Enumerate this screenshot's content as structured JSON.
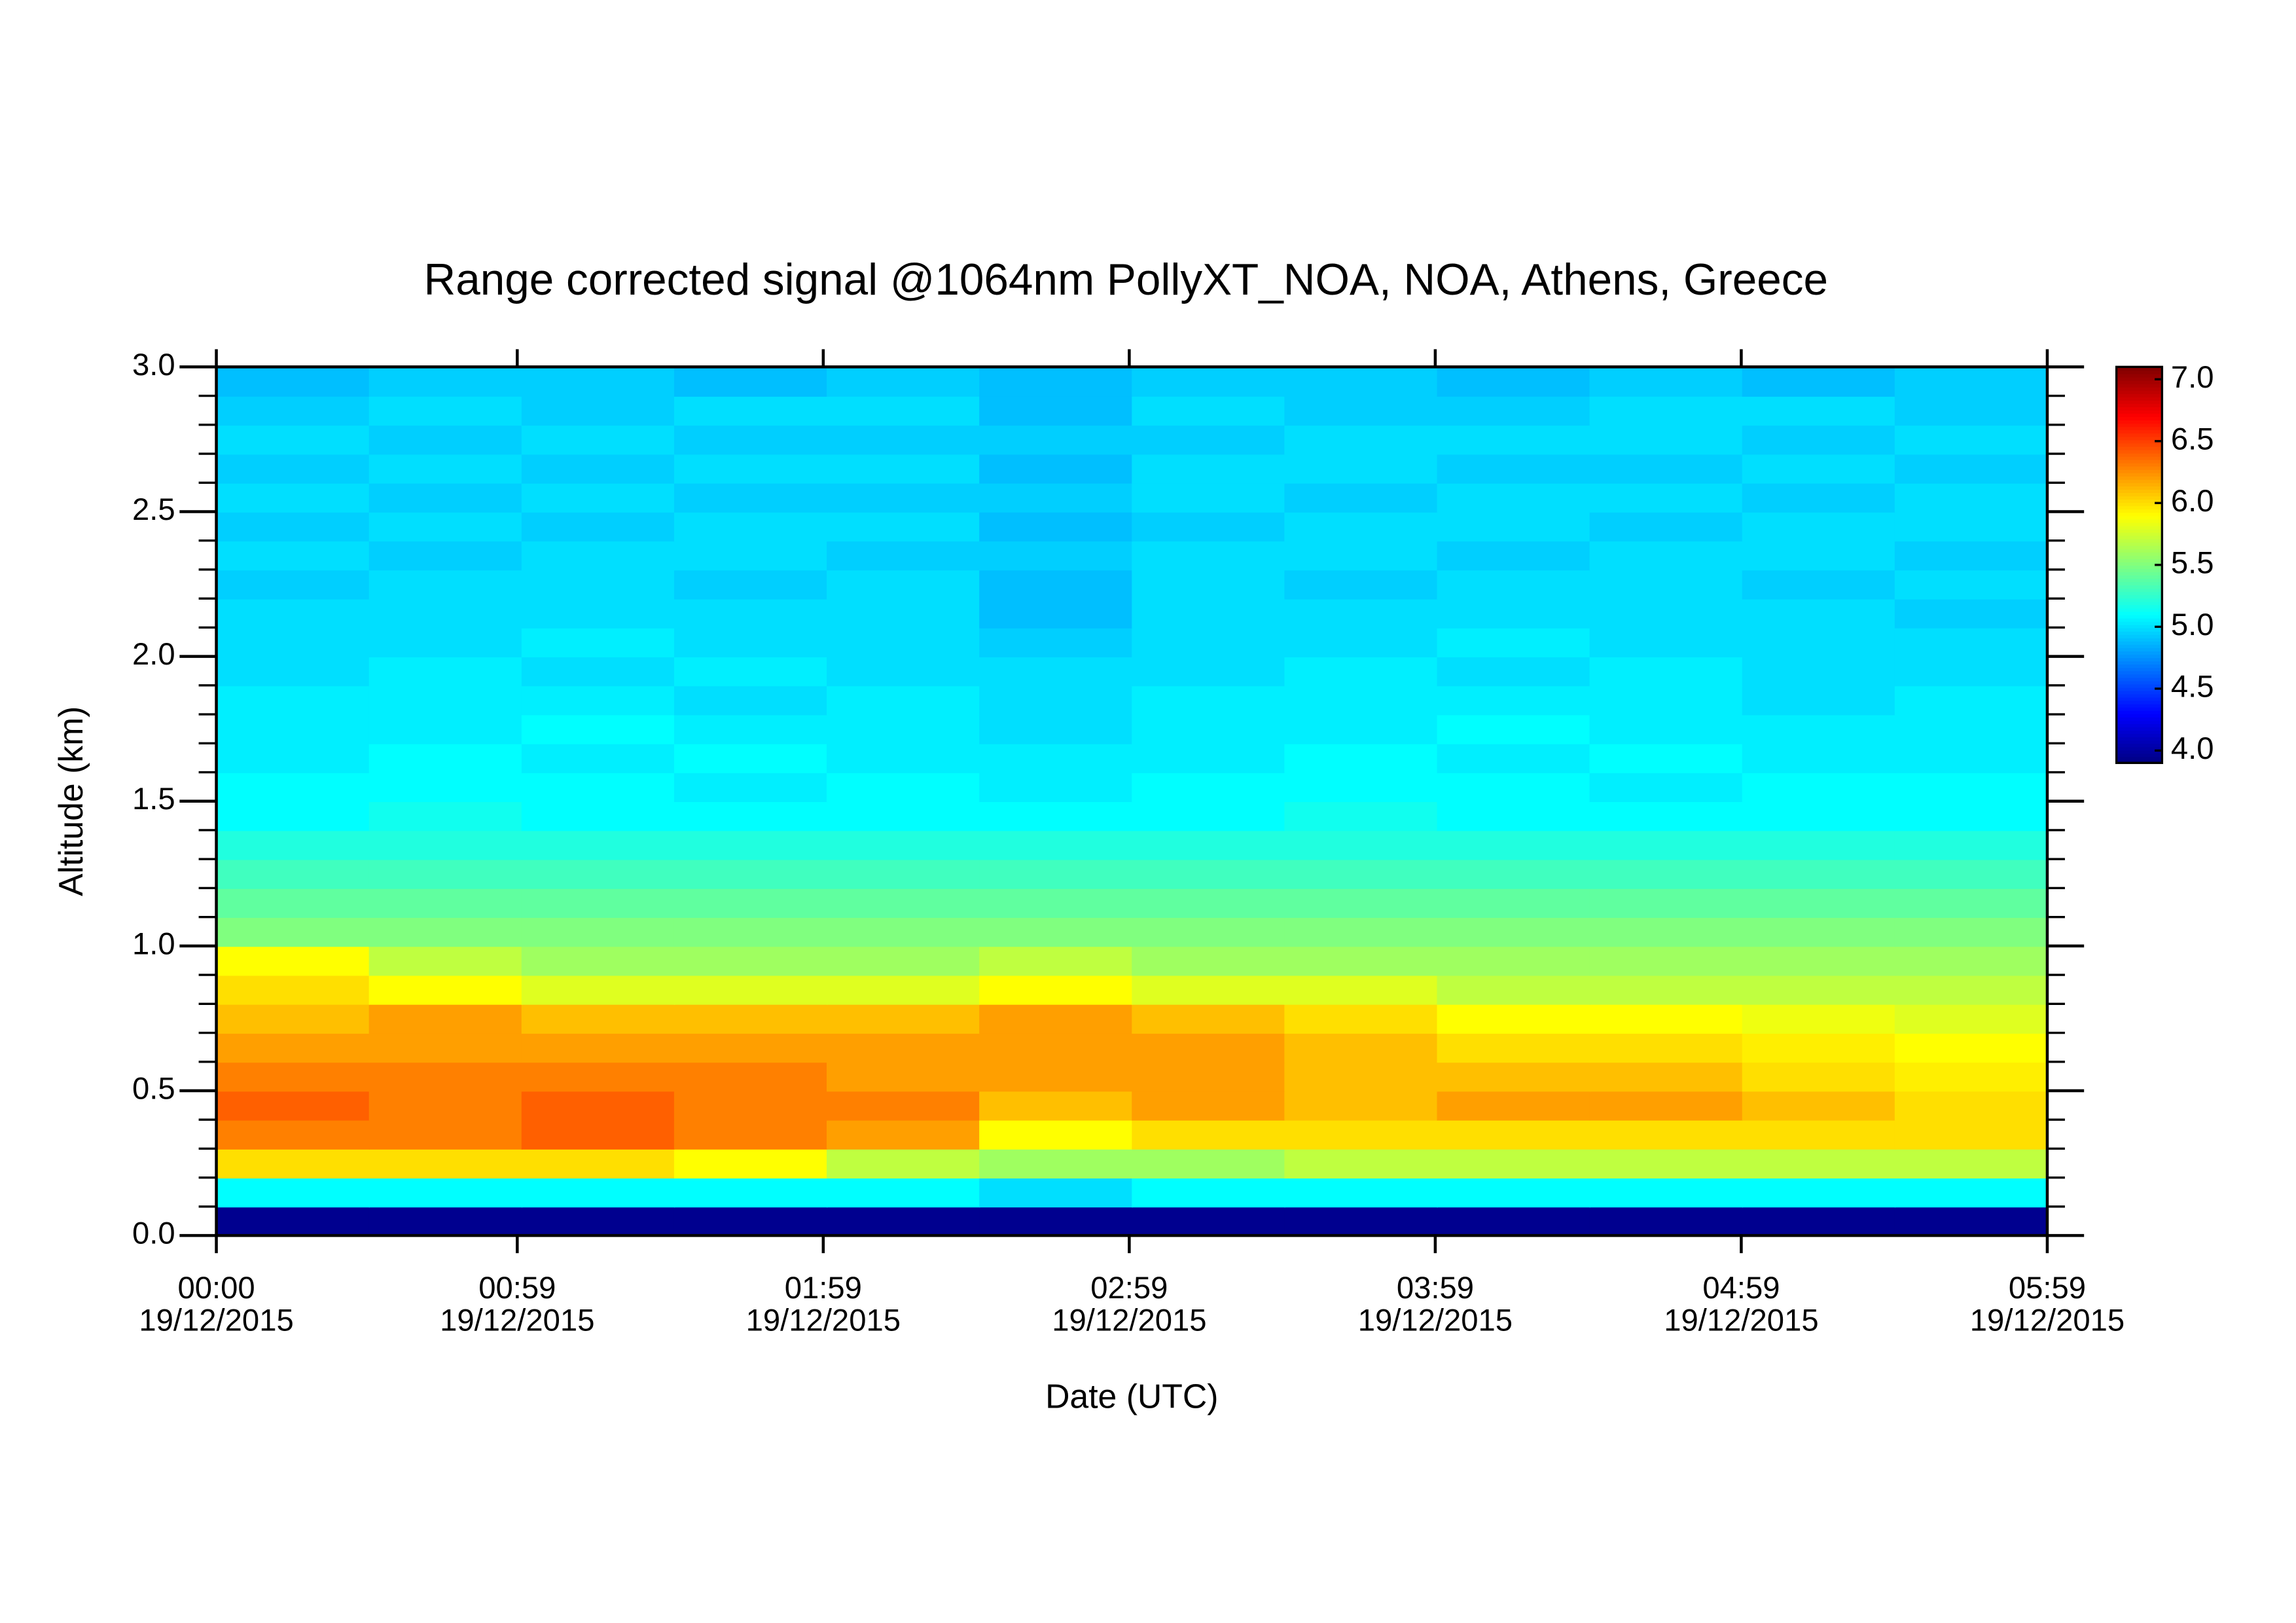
{
  "chart_data": {
    "type": "heatmap",
    "title": "Range corrected signal @1064nm  PollyXT_NOA, NOA, Athens, Greece",
    "xlabel": "Date (UTC)",
    "ylabel": "Altitude (km)",
    "xlim": [
      0,
      359
    ],
    "xticks": [
      {
        "value": 0,
        "label": "00:00"
      },
      {
        "value": 59,
        "label": "00:59"
      },
      {
        "value": 119,
        "label": "01:59"
      },
      {
        "value": 179,
        "label": "02:59"
      },
      {
        "value": 239,
        "label": "03:59"
      },
      {
        "value": 299,
        "label": "04:59"
      },
      {
        "value": 359,
        "label": "05:59"
      }
    ],
    "xtick_dates": [
      "19/12/2015",
      "19/12/2015",
      "19/12/2015",
      "19/12/2015",
      "19/12/2015",
      "19/12/2015",
      "19/12/2015"
    ],
    "ylim": [
      0,
      3
    ],
    "yticks": [
      {
        "value": 0,
        "label": "0.0"
      },
      0.5,
      {
        "value": 1,
        "label": "1.0"
      },
      1.5,
      {
        "value": 2,
        "label": "2.0"
      },
      2.5,
      {
        "value": 3,
        "label": "3.0"
      }
    ],
    "yminorticks": [
      0.1,
      0.2,
      0.3,
      0.4,
      0.6,
      0.7,
      0.8,
      0.9,
      1.1,
      1.2,
      1.3,
      1.4,
      1.6,
      1.7,
      1.8,
      1.9,
      2.1,
      2.2,
      2.3,
      2.4,
      2.6,
      2.7,
      2.8,
      2.9
    ],
    "colormap": "jet",
    "clim": [
      3.9,
      7.1
    ],
    "cticks": [
      {
        "value": 4,
        "label": "4.0"
      },
      4.5,
      {
        "value": 5,
        "label": "5.0"
      },
      5.5,
      {
        "value": 6,
        "label": "6.0"
      },
      6.5,
      {
        "value": 7,
        "label": "7.0"
      }
    ],
    "z": [
      [
        3.95,
        3.95,
        3.95,
        3.95,
        3.95,
        3.95,
        3.95,
        3.95,
        3.95,
        3.95,
        3.95,
        3.95
      ],
      [
        5.1,
        5.1,
        5.1,
        5.1,
        5.1,
        5.0,
        5.1,
        5.1,
        5.1,
        5.1,
        5.1,
        5.1
      ],
      [
        6.0,
        6.0,
        6.0,
        5.9,
        5.7,
        5.6,
        5.6,
        5.7,
        5.7,
        5.7,
        5.7,
        5.7
      ],
      [
        6.3,
        6.3,
        6.4,
        6.3,
        6.2,
        5.9,
        6.0,
        6.0,
        6.0,
        6.0,
        6.0,
        6.0
      ],
      [
        6.4,
        6.3,
        6.4,
        6.3,
        6.3,
        6.1,
        6.2,
        6.1,
        6.2,
        6.2,
        6.1,
        6.0
      ],
      [
        6.3,
        6.3,
        6.3,
        6.3,
        6.2,
        6.2,
        6.2,
        6.1,
        6.1,
        6.1,
        6.0,
        5.95
      ],
      [
        6.2,
        6.2,
        6.2,
        6.2,
        6.2,
        6.2,
        6.2,
        6.1,
        6.0,
        6.0,
        5.95,
        5.9
      ],
      [
        6.1,
        6.2,
        6.1,
        6.1,
        6.1,
        6.2,
        6.1,
        6.0,
        5.9,
        5.9,
        5.85,
        5.8
      ],
      [
        6.0,
        5.9,
        5.8,
        5.8,
        5.8,
        5.9,
        5.8,
        5.8,
        5.7,
        5.7,
        5.7,
        5.7
      ],
      [
        5.9,
        5.7,
        5.6,
        5.6,
        5.6,
        5.7,
        5.6,
        5.6,
        5.6,
        5.6,
        5.6,
        5.6
      ],
      [
        5.5,
        5.5,
        5.5,
        5.5,
        5.5,
        5.5,
        5.5,
        5.5,
        5.5,
        5.5,
        5.5,
        5.5
      ],
      [
        5.4,
        5.4,
        5.4,
        5.4,
        5.4,
        5.4,
        5.4,
        5.4,
        5.4,
        5.4,
        5.4,
        5.4
      ],
      [
        5.3,
        5.3,
        5.3,
        5.3,
        5.3,
        5.3,
        5.3,
        5.3,
        5.3,
        5.3,
        5.3,
        5.3
      ],
      [
        5.2,
        5.2,
        5.2,
        5.2,
        5.2,
        5.2,
        5.2,
        5.2,
        5.2,
        5.2,
        5.2,
        5.2
      ],
      [
        5.1,
        5.15,
        5.1,
        5.1,
        5.1,
        5.1,
        5.1,
        5.15,
        5.1,
        5.1,
        5.1,
        5.1
      ],
      [
        5.1,
        5.1,
        5.1,
        5.05,
        5.1,
        5.05,
        5.1,
        5.1,
        5.1,
        5.05,
        5.1,
        5.1
      ],
      [
        5.05,
        5.1,
        5.05,
        5.1,
        5.05,
        5.05,
        5.05,
        5.1,
        5.05,
        5.1,
        5.05,
        5.05
      ],
      [
        5.05,
        5.05,
        5.1,
        5.05,
        5.05,
        5.0,
        5.05,
        5.05,
        5.1,
        5.05,
        5.05,
        5.05
      ],
      [
        5.05,
        5.05,
        5.05,
        5.0,
        5.05,
        5.0,
        5.05,
        5.05,
        5.05,
        5.05,
        5.0,
        5.05
      ],
      [
        5.0,
        5.05,
        5.0,
        5.05,
        5.0,
        5.0,
        5.0,
        5.05,
        5.0,
        5.05,
        5.0,
        5.0
      ],
      [
        5.0,
        5.0,
        5.05,
        5.0,
        5.0,
        4.95,
        5.0,
        5.0,
        5.05,
        5.0,
        5.0,
        5.0
      ],
      [
        5.0,
        5.0,
        5.0,
        5.0,
        5.0,
        4.9,
        5.0,
        5.0,
        5.0,
        5.0,
        5.0,
        4.95
      ],
      [
        4.95,
        5.0,
        5.0,
        4.95,
        5.0,
        4.9,
        5.0,
        4.95,
        5.0,
        5.0,
        4.95,
        5.0
      ],
      [
        5.0,
        4.95,
        5.0,
        5.0,
        4.95,
        4.95,
        5.0,
        5.0,
        4.95,
        5.0,
        5.0,
        4.95
      ],
      [
        4.95,
        5.0,
        4.95,
        5.0,
        5.0,
        4.9,
        4.95,
        5.0,
        5.0,
        4.95,
        5.0,
        5.0
      ],
      [
        5.0,
        4.95,
        5.0,
        4.95,
        4.95,
        4.95,
        5.0,
        4.95,
        5.0,
        5.0,
        4.95,
        5.0
      ],
      [
        4.95,
        5.0,
        4.95,
        5.0,
        5.0,
        4.9,
        5.0,
        5.0,
        4.95,
        4.95,
        5.0,
        4.95
      ],
      [
        5.0,
        4.95,
        5.0,
        4.95,
        4.95,
        4.95,
        4.95,
        5.0,
        5.0,
        5.0,
        4.95,
        5.0
      ],
      [
        4.95,
        5.0,
        4.95,
        5.0,
        5.0,
        4.9,
        5.0,
        4.95,
        4.95,
        5.0,
        5.0,
        4.95
      ],
      [
        4.9,
        4.95,
        4.95,
        4.9,
        4.95,
        4.9,
        4.95,
        4.95,
        4.9,
        4.95,
        4.9,
        4.95
      ]
    ]
  }
}
